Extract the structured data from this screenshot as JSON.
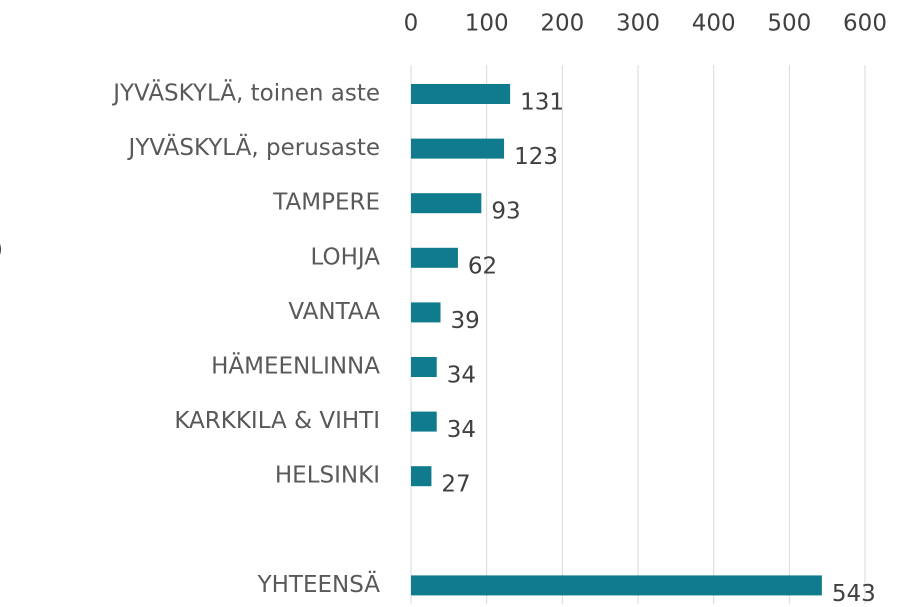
{
  "chart_data": {
    "type": "bar",
    "orientation": "horizontal",
    "annotation": ")",
    "categories": [
      "JYVÄSKYLÄ, toinen aste",
      "JYVÄSKYLÄ, perusaste",
      "TAMPERE",
      "LOHJA",
      "VANTAA",
      "HÄMEENLINNA",
      "KARKKILA & VIHTI",
      "HELSINKI",
      null,
      "YHTEENSÄ"
    ],
    "values": [
      131,
      123,
      93,
      62,
      39,
      34,
      34,
      27,
      null,
      543
    ],
    "color": "#0f7b8c",
    "xlim": [
      0,
      600
    ],
    "xticks": [
      0,
      100,
      200,
      300,
      400,
      500,
      600
    ],
    "grid": true
  }
}
